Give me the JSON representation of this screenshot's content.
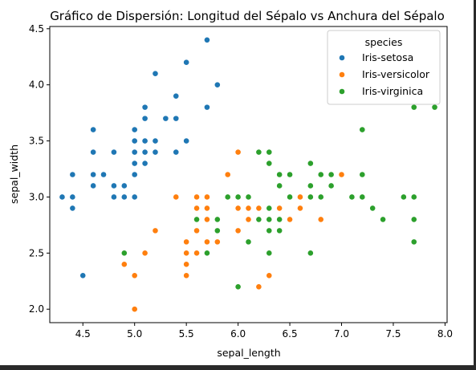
{
  "chart_data": {
    "type": "scatter",
    "title": "Gráfico de Dispersión: Longitud del Sépalo vs Anchura del Sépalo",
    "xlabel": "sepal_length",
    "ylabel": "sepal_width",
    "xlim": [
      4.18,
      8.02
    ],
    "ylim": [
      1.88,
      4.52
    ],
    "xticks": [
      "4.5",
      "5.0",
      "5.5",
      "6.0",
      "6.5",
      "7.0",
      "7.5",
      "8.0"
    ],
    "yticks": [
      "2.0",
      "2.5",
      "3.0",
      "3.5",
      "4.0",
      "4.5"
    ],
    "grid": false,
    "legend": {
      "title": "species",
      "placement": "top-right"
    },
    "series": [
      {
        "name": "Iris-setosa",
        "color": "#1f77b4",
        "points": [
          [
            5.1,
            3.5
          ],
          [
            4.9,
            3.0
          ],
          [
            4.7,
            3.2
          ],
          [
            4.6,
            3.1
          ],
          [
            5.0,
            3.6
          ],
          [
            5.4,
            3.9
          ],
          [
            4.6,
            3.4
          ],
          [
            5.0,
            3.4
          ],
          [
            4.4,
            2.9
          ],
          [
            4.9,
            3.1
          ],
          [
            5.4,
            3.7
          ],
          [
            4.8,
            3.4
          ],
          [
            4.8,
            3.0
          ],
          [
            4.3,
            3.0
          ],
          [
            5.8,
            4.0
          ],
          [
            5.7,
            4.4
          ],
          [
            5.4,
            3.9
          ],
          [
            5.1,
            3.5
          ],
          [
            5.7,
            3.8
          ],
          [
            5.1,
            3.8
          ],
          [
            5.4,
            3.4
          ],
          [
            5.1,
            3.7
          ],
          [
            4.6,
            3.6
          ],
          [
            5.1,
            3.3
          ],
          [
            4.8,
            3.4
          ],
          [
            5.0,
            3.0
          ],
          [
            5.0,
            3.4
          ],
          [
            5.2,
            3.5
          ],
          [
            5.2,
            3.4
          ],
          [
            4.7,
            3.2
          ],
          [
            4.8,
            3.1
          ],
          [
            5.4,
            3.4
          ],
          [
            5.2,
            4.1
          ],
          [
            5.5,
            4.2
          ],
          [
            4.9,
            3.1
          ],
          [
            5.0,
            3.2
          ],
          [
            5.5,
            3.5
          ],
          [
            4.9,
            3.1
          ],
          [
            4.4,
            3.0
          ],
          [
            5.1,
            3.4
          ],
          [
            5.0,
            3.5
          ],
          [
            4.5,
            2.3
          ],
          [
            4.4,
            3.2
          ],
          [
            5.0,
            3.5
          ],
          [
            5.1,
            3.8
          ],
          [
            4.8,
            3.0
          ],
          [
            5.1,
            3.8
          ],
          [
            4.6,
            3.2
          ],
          [
            5.3,
            3.7
          ],
          [
            5.0,
            3.3
          ]
        ]
      },
      {
        "name": "Iris-versicolor",
        "color": "#ff7f0e",
        "points": [
          [
            7.0,
            3.2
          ],
          [
            6.4,
            3.2
          ],
          [
            6.9,
            3.1
          ],
          [
            5.5,
            2.3
          ],
          [
            6.5,
            2.8
          ],
          [
            5.7,
            2.8
          ],
          [
            6.3,
            3.3
          ],
          [
            4.9,
            2.4
          ],
          [
            6.6,
            2.9
          ],
          [
            5.2,
            2.7
          ],
          [
            5.0,
            2.0
          ],
          [
            5.9,
            3.0
          ],
          [
            6.0,
            2.2
          ],
          [
            6.1,
            2.9
          ],
          [
            5.6,
            2.9
          ],
          [
            6.7,
            3.1
          ],
          [
            5.6,
            3.0
          ],
          [
            5.8,
            2.7
          ],
          [
            6.2,
            2.2
          ],
          [
            5.6,
            2.5
          ],
          [
            5.9,
            3.2
          ],
          [
            6.1,
            2.8
          ],
          [
            6.3,
            2.5
          ],
          [
            6.1,
            2.8
          ],
          [
            6.4,
            2.9
          ],
          [
            6.6,
            3.0
          ],
          [
            6.8,
            2.8
          ],
          [
            6.7,
            3.0
          ],
          [
            6.0,
            2.9
          ],
          [
            5.7,
            2.6
          ],
          [
            5.5,
            2.4
          ],
          [
            5.5,
            2.4
          ],
          [
            5.8,
            2.7
          ],
          [
            6.0,
            2.7
          ],
          [
            5.4,
            3.0
          ],
          [
            6.0,
            3.4
          ],
          [
            6.7,
            3.1
          ],
          [
            6.3,
            2.3
          ],
          [
            5.6,
            3.0
          ],
          [
            5.5,
            2.5
          ],
          [
            5.5,
            2.6
          ],
          [
            6.1,
            3.0
          ],
          [
            5.8,
            2.6
          ],
          [
            5.0,
            2.3
          ],
          [
            5.6,
            2.7
          ],
          [
            5.7,
            3.0
          ],
          [
            5.7,
            2.9
          ],
          [
            6.2,
            2.9
          ],
          [
            5.1,
            2.5
          ],
          [
            5.7,
            2.8
          ]
        ]
      },
      {
        "name": "Iris-virginica",
        "color": "#2ca02c",
        "points": [
          [
            6.3,
            3.3
          ],
          [
            5.8,
            2.7
          ],
          [
            7.1,
            3.0
          ],
          [
            6.3,
            2.9
          ],
          [
            6.5,
            3.0
          ],
          [
            7.6,
            3.0
          ],
          [
            4.9,
            2.5
          ],
          [
            7.3,
            2.9
          ],
          [
            6.7,
            2.5
          ],
          [
            7.2,
            3.6
          ],
          [
            6.5,
            3.2
          ],
          [
            6.4,
            2.7
          ],
          [
            6.8,
            3.0
          ],
          [
            5.7,
            2.5
          ],
          [
            5.8,
            2.8
          ],
          [
            6.4,
            3.2
          ],
          [
            6.5,
            3.0
          ],
          [
            7.7,
            3.8
          ],
          [
            7.7,
            2.6
          ],
          [
            6.0,
            2.2
          ],
          [
            6.9,
            3.2
          ],
          [
            5.6,
            2.8
          ],
          [
            7.7,
            2.8
          ],
          [
            6.3,
            2.7
          ],
          [
            6.7,
            3.3
          ],
          [
            7.2,
            3.2
          ],
          [
            6.2,
            2.8
          ],
          [
            6.1,
            3.0
          ],
          [
            6.4,
            2.8
          ],
          [
            7.2,
            3.0
          ],
          [
            7.4,
            2.8
          ],
          [
            7.9,
            3.8
          ],
          [
            6.4,
            2.8
          ],
          [
            6.3,
            2.8
          ],
          [
            6.1,
            2.6
          ],
          [
            7.7,
            3.0
          ],
          [
            6.3,
            3.4
          ],
          [
            6.4,
            3.1
          ],
          [
            6.0,
            3.0
          ],
          [
            6.9,
            3.1
          ],
          [
            6.7,
            3.1
          ],
          [
            6.9,
            3.1
          ],
          [
            5.8,
            2.7
          ],
          [
            6.8,
            3.2
          ],
          [
            6.7,
            3.3
          ],
          [
            6.7,
            3.0
          ],
          [
            6.3,
            2.5
          ],
          [
            6.5,
            3.0
          ],
          [
            6.2,
            3.4
          ],
          [
            5.9,
            3.0
          ]
        ]
      }
    ]
  }
}
